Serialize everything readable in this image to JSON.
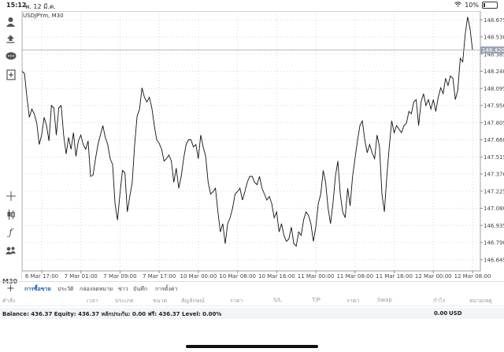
{
  "status": {
    "time": "15:12",
    "date": "พ. 12 มี.ค.",
    "battery": "10%",
    "battery_level": 0.1
  },
  "chart": {
    "symbol_label": "USDJPYm, M30",
    "timeframe": "M30",
    "current_price": "148.420"
  },
  "chart_data": {
    "type": "line",
    "series": [
      {
        "values": [
          148.24,
          148.22,
          148.02,
          147.85,
          147.92,
          147.88,
          147.8,
          147.62,
          147.7,
          147.85,
          147.78,
          147.65,
          147.95,
          147.93,
          147.7,
          147.93,
          147.95,
          147.7,
          147.54,
          147.68,
          147.58,
          147.72,
          147.52,
          147.65,
          147.7,
          147.62,
          147.58,
          147.65,
          147.35,
          147.36,
          147.5,
          147.62,
          147.7,
          147.78,
          147.68,
          147.62,
          147.5,
          147.45,
          147.12,
          146.98,
          147.2,
          147.4,
          147.38,
          147.05,
          147.18,
          147.3,
          147.62,
          147.86,
          147.92,
          148.1,
          148.02,
          147.98,
          148.02,
          147.93,
          147.78,
          147.66,
          147.63,
          147.58,
          147.48,
          147.5,
          147.53,
          147.48,
          147.3,
          147.42,
          147.25,
          147.35,
          147.5,
          147.62,
          147.66,
          147.66,
          147.6,
          147.62,
          147.5,
          147.7,
          147.6,
          147.52,
          147.3,
          147.2,
          147.22,
          147.25,
          147.05,
          146.88,
          146.95,
          146.78,
          146.95,
          147.0,
          147.08,
          147.2,
          147.22,
          147.25,
          147.15,
          147.22,
          147.3,
          147.35,
          147.35,
          147.3,
          147.28,
          147.35,
          147.25,
          147.2,
          147.15,
          147.18,
          147.12,
          147.0,
          147.05,
          146.88,
          146.95,
          146.85,
          146.8,
          146.82,
          146.92,
          146.78,
          146.76,
          146.88,
          146.85,
          146.98,
          147.05,
          147.02,
          146.95,
          146.8,
          146.92,
          147.12,
          147.2,
          147.4,
          147.3,
          147.08,
          146.95,
          147.12,
          147.35,
          147.48,
          147.2,
          147.05,
          147.0,
          147.25,
          147.1,
          147.35,
          147.5,
          147.65,
          147.78,
          147.82,
          147.66,
          147.55,
          147.62,
          147.55,
          147.5,
          147.7,
          147.6,
          147.2,
          147.05,
          147.35,
          147.6,
          147.82,
          147.72,
          147.78,
          147.75,
          147.72,
          147.78,
          147.8,
          147.9,
          147.88,
          147.98,
          148.0,
          147.78,
          147.98,
          148.05,
          147.95,
          148.0,
          147.92,
          148.0,
          147.9,
          148.02,
          148.1,
          148.05,
          148.18,
          148.12,
          148.2,
          148.18,
          148.0,
          148.08,
          148.35,
          148.32,
          148.55,
          148.7,
          148.6,
          148.42
        ]
      }
    ],
    "ylim": [
      146.55,
      148.75
    ],
    "y_ticks": [
      "148.675",
      "148.530",
      "148.385",
      "148.240",
      "148.095",
      "147.950",
      "147.805",
      "147.660",
      "147.515",
      "147.370",
      "147.225",
      "147.080",
      "146.935",
      "146.790",
      "146.645"
    ],
    "x_ticks": [
      "6 Mar 17:00",
      "7 Mar 01:00",
      "7 Mar 09:00",
      "7 Mar 17:00",
      "10 Mar 00:00",
      "10 Mar 08:00",
      "10 Mar 16:00",
      "11 Mar 00:00",
      "11 Mar 08:00",
      "11 Mar 16:00",
      "12 Mar 00:00",
      "12 Mar 08:00"
    ],
    "grid": true
  },
  "tabs": [
    {
      "label": "การซื้อขาย"
    },
    {
      "label": "ประวัติ"
    },
    {
      "label": "กล่องจดหมาย"
    },
    {
      "label": "ข่าว"
    },
    {
      "label": "บันทึก"
    },
    {
      "label": "การตั้งค่า"
    }
  ],
  "columns": [
    "คำสั่ง",
    "เวลา",
    "ประเภท",
    "ขนาด",
    "สัญลักษณ์",
    "ราคา",
    "S/L",
    "T/P",
    "ราคา",
    "Swap",
    "กำไร",
    "หมายเหตุ"
  ],
  "balance": {
    "text": "Balance: 436.37 Equity: 436.37 หลักประกัน: 0.00 ฟรี: 436.37 Level: 0.00%",
    "amount": "0.00",
    "currency": "USD"
  },
  "toolbar_icons": [
    "account-icon",
    "trade-icon",
    "chat-icon",
    "new-order-icon",
    "crosshair-icon",
    "candles-icon",
    "function-icon",
    "objects-icon"
  ]
}
